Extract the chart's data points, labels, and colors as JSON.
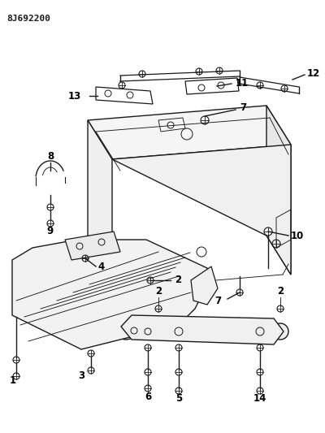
{
  "part_number": "8J692200",
  "background_color": "#ffffff",
  "line_color": "#1a1a1a",
  "label_color": "#000000"
}
